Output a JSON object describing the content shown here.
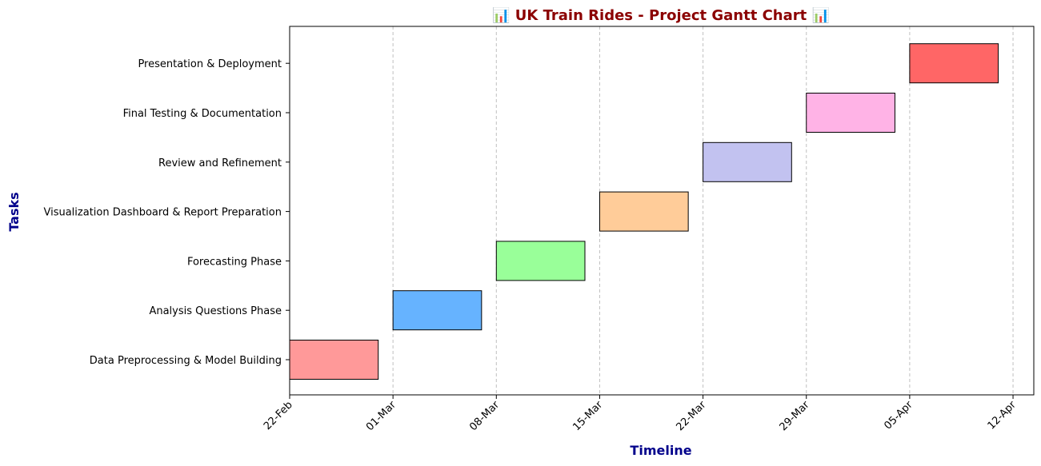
{
  "chart_data": {
    "type": "gantt",
    "title": "📊 UK Train Rides - Project Gantt Chart 📊",
    "xlabel": "Timeline",
    "ylabel": "Tasks",
    "x_axis": {
      "type": "date",
      "range": [
        "2025-02-22",
        "2025-04-13"
      ],
      "tick_dates": [
        "2025-02-22",
        "2025-03-01",
        "2025-03-08",
        "2025-03-15",
        "2025-03-22",
        "2025-03-29",
        "2025-04-05",
        "2025-04-12"
      ],
      "tick_labels": [
        "22-Feb",
        "01-Mar",
        "08-Mar",
        "15-Mar",
        "22-Mar",
        "29-Mar",
        "05-Apr",
        "12-Apr"
      ],
      "grid": "vertical dashed"
    },
    "tasks": [
      {
        "name": "Data Preprocessing & Model Building",
        "start": "2025-02-22",
        "end": "2025-02-28",
        "color": "#ff9999"
      },
      {
        "name": "Analysis Questions Phase",
        "start": "2025-03-01",
        "end": "2025-03-07",
        "color": "#66b3ff"
      },
      {
        "name": "Forecasting Phase",
        "start": "2025-03-08",
        "end": "2025-03-14",
        "color": "#99ff99"
      },
      {
        "name": "Visualization Dashboard & Report Preparation",
        "start": "2025-03-15",
        "end": "2025-03-21",
        "color": "#ffcc99"
      },
      {
        "name": "Review and Refinement",
        "start": "2025-03-22",
        "end": "2025-03-28",
        "color": "#c2c2f0"
      },
      {
        "name": "Final Testing & Documentation",
        "start": "2025-03-29",
        "end": "2025-04-04",
        "color": "#ffb3e6"
      },
      {
        "name": "Presentation & Deployment",
        "start": "2025-04-05",
        "end": "2025-04-11",
        "color": "#ff6666"
      }
    ],
    "colors": {
      "title": "#8b0000",
      "axis_label": "#00008b",
      "grid": "#c0c0c0",
      "bar_edge": "#000000"
    }
  }
}
